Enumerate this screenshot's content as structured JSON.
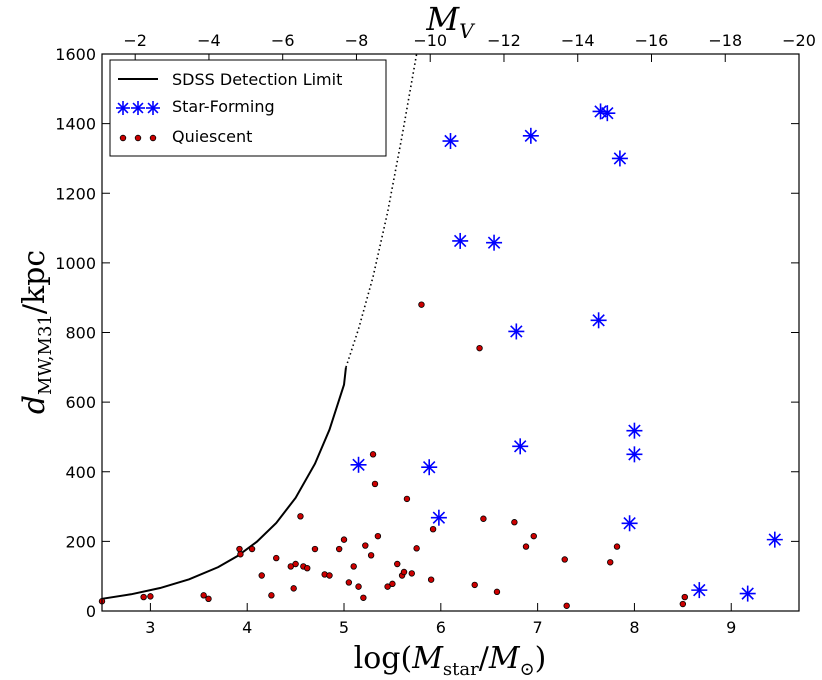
{
  "chart_data": {
    "type": "scatter",
    "title": "",
    "xlabel": "log(M_star/M_sun)",
    "ylabel": "d_MW,M31/kpc",
    "top_xlabel": "M_V",
    "xlim": [
      2.5,
      9.7
    ],
    "ylim": [
      0,
      1600
    ],
    "top_xlim": [
      -1.1,
      -20.0
    ],
    "x_ticks": [
      3,
      4,
      5,
      6,
      7,
      8,
      9
    ],
    "y_ticks": [
      0,
      200,
      400,
      600,
      800,
      1000,
      1200,
      1400,
      1600
    ],
    "top_ticks": [
      -2,
      -4,
      -6,
      -8,
      -10,
      -12,
      -14,
      -16,
      -18,
      -20
    ],
    "legend_position": "top-left",
    "legend": [
      "SDSS Detection Limit",
      "Star-Forming",
      "Quiescent"
    ],
    "series": [
      {
        "name": "SDSS Detection Limit",
        "kind": "curve",
        "color": "#000000",
        "solid_x": [
          2.5,
          2.8,
          3.1,
          3.4,
          3.7,
          3.9,
          4.1,
          4.3,
          4.5,
          4.7,
          4.85,
          5.0,
          5.02
        ],
        "solid_y": [
          35,
          48,
          66,
          91,
          126,
          158,
          199,
          253,
          325,
          423,
          521,
          650,
          700
        ],
        "dotted_x": [
          5.02,
          5.15,
          5.3,
          5.45,
          5.6,
          5.75
        ],
        "dotted_y": [
          700,
          810,
          960,
          1145,
          1365,
          1600
        ]
      },
      {
        "name": "Star-Forming",
        "kind": "asterisk",
        "color": "#0000ff",
        "x": [
          7.65,
          7.72,
          6.1,
          6.93,
          7.85,
          6.2,
          6.55,
          6.78,
          7.63,
          5.15,
          5.88,
          6.82,
          8.0,
          8.0,
          5.98,
          7.95,
          9.45,
          8.67,
          9.17
        ],
        "y": [
          1435,
          1430,
          1350,
          1365,
          1300,
          1063,
          1058,
          803,
          835,
          420,
          413,
          473,
          518,
          450,
          268,
          252,
          205,
          60,
          50
        ]
      },
      {
        "name": "Quiescent",
        "kind": "dot",
        "color": "#cc0000",
        "x": [
          2.5,
          2.93,
          3.0,
          3.55,
          3.6,
          3.93,
          4.05,
          4.15,
          4.25,
          4.3,
          4.45,
          4.48,
          4.5,
          4.55,
          4.58,
          4.62,
          4.7,
          4.8,
          4.85,
          4.95,
          5.0,
          5.05,
          5.1,
          5.15,
          5.2,
          5.22,
          5.28,
          5.3,
          5.32,
          5.35,
          5.45,
          5.5,
          5.55,
          5.6,
          5.62,
          5.65,
          5.7,
          5.75,
          5.8,
          5.9,
          5.92,
          6.35,
          6.4,
          6.44,
          6.58,
          6.76,
          6.88,
          6.96,
          7.28,
          7.3,
          7.75,
          7.82,
          8.5,
          8.52,
          3.92
        ],
        "y": [
          28,
          40,
          42,
          45,
          35,
          163,
          178,
          102,
          45,
          152,
          128,
          65,
          135,
          272,
          128,
          123,
          178,
          105,
          102,
          178,
          205,
          82,
          128,
          70,
          38,
          188,
          160,
          450,
          365,
          215,
          70,
          78,
          135,
          102,
          112,
          322,
          108,
          180,
          880,
          90,
          235,
          75,
          755,
          265,
          55,
          255,
          185,
          215,
          148,
          15,
          140,
          185,
          20,
          40,
          178
        ]
      }
    ]
  }
}
